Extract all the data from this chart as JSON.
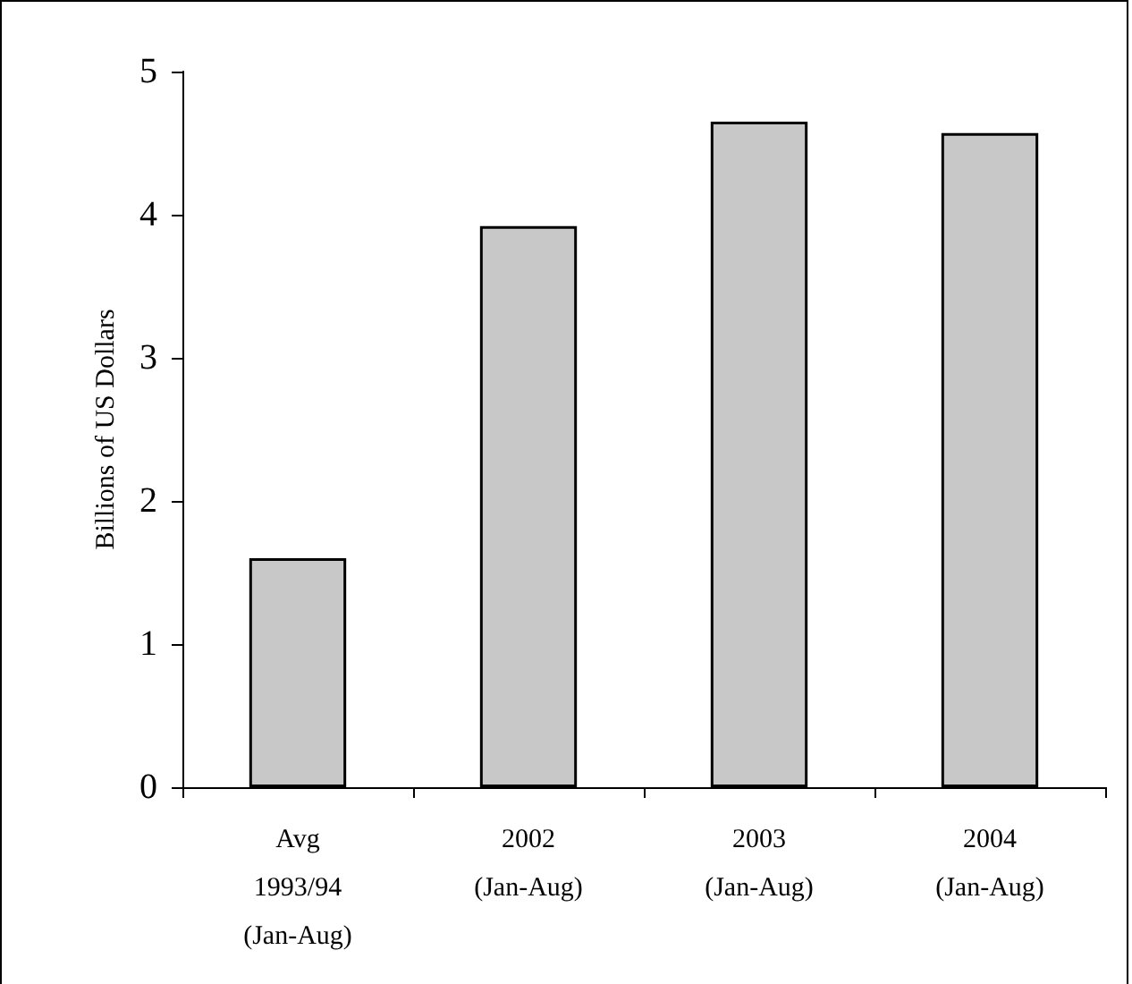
{
  "chart_data": {
    "type": "bar",
    "ylabel": "Billions of US Dollars",
    "categories": [
      "Avg\n1993/94\n(Jan-Aug)",
      "2002\n(Jan-Aug)",
      "2003\n(Jan-Aug)",
      "2004\n(Jan-Aug)"
    ],
    "values": [
      1.6,
      3.92,
      4.65,
      4.57
    ],
    "color": "#c8c8c8",
    "ylim": [
      0,
      5
    ],
    "yticks": [
      0,
      1,
      2,
      3,
      4,
      5
    ],
    "grid": false
  }
}
